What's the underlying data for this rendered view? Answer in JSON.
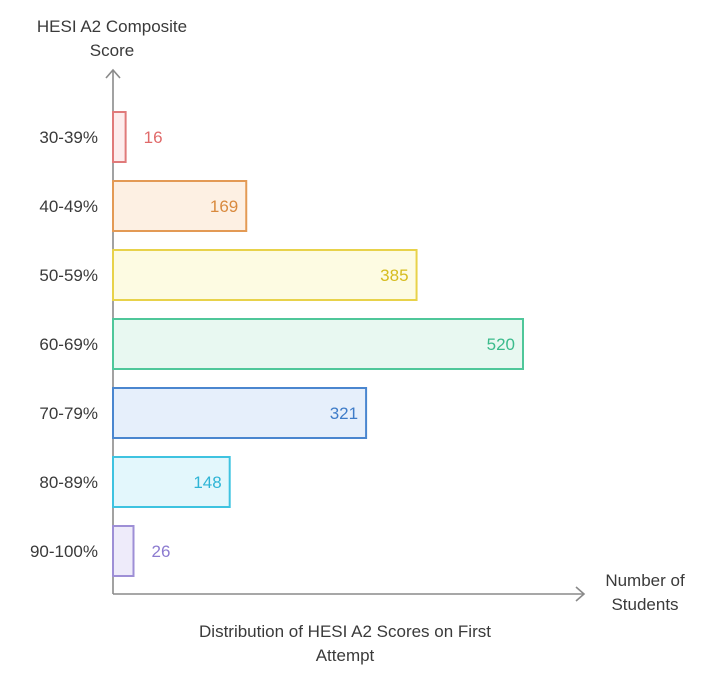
{
  "chart_data": {
    "type": "bar",
    "orientation": "horizontal",
    "ylabel_lines": [
      "HESI A2 Composite",
      "Score"
    ],
    "xlabel_lines": [
      "Number of",
      "Students"
    ],
    "caption_lines": [
      "Distribution of HESI A2 Scores on First",
      "Attempt"
    ],
    "categories": [
      "30-39%",
      "40-49%",
      "50-59%",
      "60-69%",
      "70-79%",
      "80-89%",
      "90-100%"
    ],
    "values": [
      16,
      169,
      385,
      520,
      321,
      148,
      26
    ],
    "xlim": [
      0,
      520
    ],
    "grid": false,
    "legend": "none",
    "colors": {
      "axis": "#8a8a8a",
      "text": "#3a3a3a",
      "bars": [
        {
          "stroke": "#e07a7a",
          "fill": "#fdecec",
          "label": "#e06a6a"
        },
        {
          "stroke": "#e39a55",
          "fill": "#fdf0e3",
          "label": "#d98a3e"
        },
        {
          "stroke": "#e8d24a",
          "fill": "#fdfbe2",
          "label": "#d6bc1f"
        },
        {
          "stroke": "#4fc79a",
          "fill": "#e8f8f1",
          "label": "#3bbb8c"
        },
        {
          "stroke": "#4a86cf",
          "fill": "#e6effb",
          "label": "#3f7cc8"
        },
        {
          "stroke": "#3ec3e0",
          "fill": "#e3f7fc",
          "label": "#2fb5d6"
        },
        {
          "stroke": "#9e8fd6",
          "fill": "#eeebfa",
          "label": "#8c7bd0"
        }
      ]
    }
  }
}
